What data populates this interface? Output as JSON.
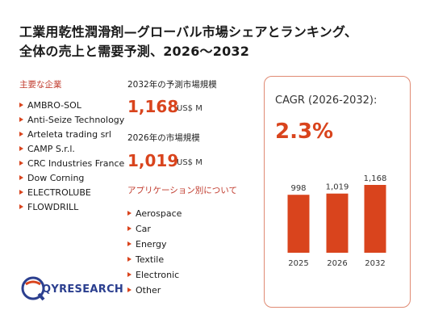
{
  "title": {
    "line1": "工業用乾性潤滑剤—グローバル市場シェアとランキング、",
    "line2": "全体の売上と需要予測、2026～2032"
  },
  "companies_heading": "主要な企業",
  "companies": [
    "AMBRO-SOL",
    "Anti-Seize Technology",
    "Arteleta trading srl",
    "CAMP S.r.l.",
    "CRC Industries France",
    "Dow Corning",
    "ELECTROLUBE",
    "FLOWDRILL"
  ],
  "market_2032": {
    "label": "2032年の予測市場規模",
    "value": "1,168",
    "unit": "US$ M"
  },
  "market_2026": {
    "label": "2026年の市場規模",
    "value": "1,019",
    "unit": "US$ M"
  },
  "applications_heading": "アプリケーション別について",
  "applications": [
    "Aerospace",
    "Car",
    "Energy",
    "Textile",
    "Electronic",
    "Other"
  ],
  "cagr": {
    "label": "CAGR (2026-2032):",
    "value": "2.3%"
  },
  "logo": {
    "text": "QYRESEARCH"
  },
  "colors": {
    "accent": "#d9441d",
    "heading": "#c0392b",
    "card_border": "#e08a73",
    "logo": "#2b3f8f"
  },
  "chart_data": {
    "type": "bar",
    "categories": [
      "2025",
      "2026",
      "2032"
    ],
    "values": [
      998,
      1019,
      1168
    ],
    "value_labels": [
      "998",
      "1,019",
      "1,168"
    ],
    "title": "",
    "xlabel": "",
    "ylabel": "",
    "ylim": [
      0,
      1168
    ]
  }
}
